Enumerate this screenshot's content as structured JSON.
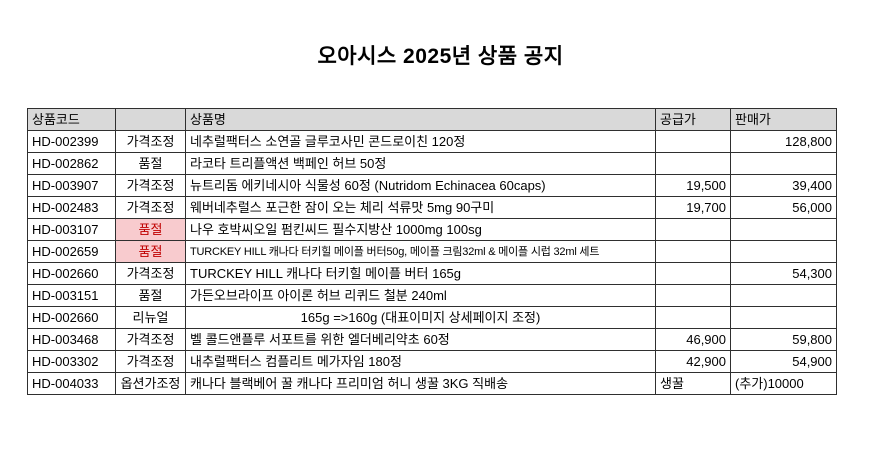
{
  "title": "오아시스 2025년 상품 공지",
  "colors": {
    "header_bg": "#d9d9d9",
    "soldout_bg": "#f8cbce",
    "soldout_text": "#c00000",
    "border": "#2f2f2f"
  },
  "table": {
    "headers": {
      "code": "상품코드",
      "category": "",
      "name": "상품명",
      "supply": "공급가",
      "sale": "판매가"
    },
    "rows": [
      {
        "code": "HD-002399",
        "category": "가격조정",
        "name": "네추럴팩터스 소연골 글루코사민 콘드로이친 120정",
        "supply": "",
        "sale": "128,800",
        "highlight": false,
        "name_center": false,
        "name_small": false,
        "supply_left": false,
        "sale_left": false
      },
      {
        "code": "HD-002862",
        "category": "품절",
        "name": "라코타 트리플액션 백페인 허브 50정",
        "supply": "",
        "sale": "",
        "highlight": false,
        "name_center": false,
        "name_small": false,
        "supply_left": false,
        "sale_left": false
      },
      {
        "code": "HD-003907",
        "category": "가격조정",
        "name": "뉴트리돔 에키네시아 식물성 60정 (Nutridom Echinacea 60caps)",
        "supply": "19,500",
        "sale": "39,400",
        "highlight": false,
        "name_center": false,
        "name_small": false,
        "supply_left": false,
        "sale_left": false
      },
      {
        "code": "HD-002483",
        "category": "가격조정",
        "name": "웨버네추럴스 포근한 잠이 오는 체리 석류맛 5mg 90구미",
        "supply": "19,700",
        "sale": "56,000",
        "highlight": false,
        "name_center": false,
        "name_small": false,
        "supply_left": false,
        "sale_left": false
      },
      {
        "code": "HD-003107",
        "category": "품절",
        "name": "나우 호박씨오일 펌킨씨드 필수지방산 1000mg 100sg",
        "supply": "",
        "sale": "",
        "highlight": true,
        "name_center": false,
        "name_small": false,
        "supply_left": false,
        "sale_left": false
      },
      {
        "code": "HD-002659",
        "category": "품절",
        "name": "TURCKEY HILL 캐나다 터키힐 메이플 버터50g, 메이플 크림32ml & 메이플 시럽 32ml 세트",
        "supply": "",
        "sale": "",
        "highlight": true,
        "name_center": false,
        "name_small": true,
        "supply_left": false,
        "sale_left": false
      },
      {
        "code": "HD-002660",
        "category": "가격조정",
        "name": "TURCKEY HILL 캐나다 터키힐 메이플 버터 165g",
        "supply": "",
        "sale": "54,300",
        "highlight": false,
        "name_center": false,
        "name_small": false,
        "supply_left": false,
        "sale_left": false
      },
      {
        "code": "HD-003151",
        "category": "품절",
        "name": "가든오브라이프 아이론 허브 리퀴드 철분 240ml",
        "supply": "",
        "sale": "",
        "highlight": false,
        "name_center": false,
        "name_small": false,
        "supply_left": false,
        "sale_left": false
      },
      {
        "code": "HD-002660",
        "category": "리뉴얼",
        "name": "165g =>160g (대표이미지 상세페이지 조정)",
        "supply": "",
        "sale": "",
        "highlight": false,
        "name_center": true,
        "name_small": false,
        "supply_left": false,
        "sale_left": false
      },
      {
        "code": "HD-003468",
        "category": "가격조정",
        "name": "벨 콜드앤플루  서포트를 위한 엘더베리약초 60정",
        "supply": "46,900",
        "sale": "59,800",
        "highlight": false,
        "name_center": false,
        "name_small": false,
        "supply_left": false,
        "sale_left": false
      },
      {
        "code": "HD-003302",
        "category": "가격조정",
        "name": "내추럴팩터스 컴플리트 메가자임 180정",
        "supply": "42,900",
        "sale": "54,900",
        "highlight": false,
        "name_center": false,
        "name_small": false,
        "supply_left": false,
        "sale_left": false
      },
      {
        "code": "HD-004033",
        "category": "옵션가조정",
        "name": "캐나다 블랙베어 꿀 캐나다 프리미엄 허니 생꿀 3KG 직배송",
        "supply": "생꿀",
        "sale": "(추가)10000",
        "highlight": false,
        "name_center": false,
        "name_small": false,
        "supply_left": true,
        "sale_left": true
      }
    ]
  }
}
